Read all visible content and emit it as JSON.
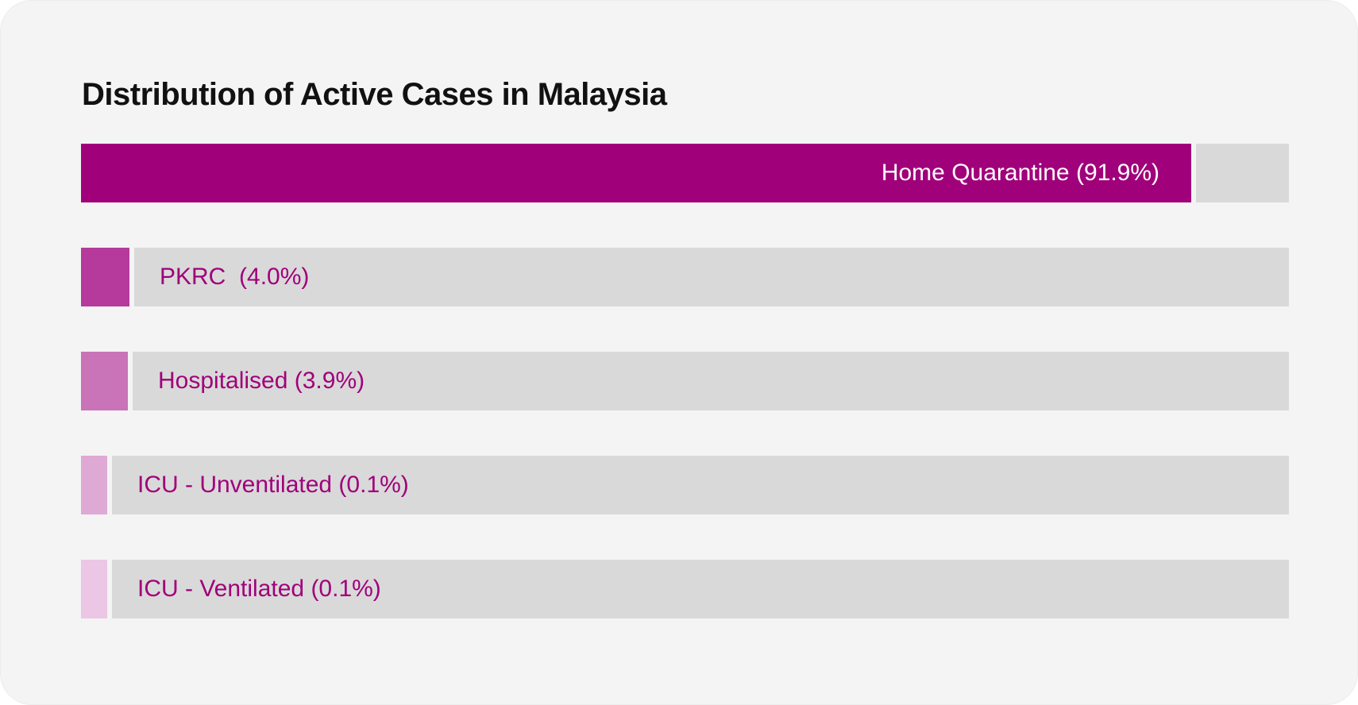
{
  "chart_data": {
    "type": "bar",
    "orientation": "horizontal",
    "title": "Distribution of Active Cases in Malaysia",
    "categories": [
      "Home Quarantine",
      "PKRC",
      "Hospitalised",
      "ICU - Unventilated",
      "ICU - Ventilated"
    ],
    "values": [
      91.9,
      4.0,
      3.9,
      0.1,
      0.1
    ],
    "labels": [
      "Home Quarantine (91.9%)",
      "PKRC  (4.0%)",
      "Hospitalised (3.9%)",
      "ICU - Unventilated (0.1%)",
      "ICU - Ventilated (0.1%)"
    ],
    "colors": [
      "#a0007a",
      "#b53a9b",
      "#c973b8",
      "#dfa9d5",
      "#ebc6e5"
    ],
    "label_colors": [
      "#ffffff",
      "#a0007a",
      "#a0007a",
      "#a0007a",
      "#a0007a"
    ],
    "track_color": "#d9d9d9",
    "xlim": [
      0,
      100
    ],
    "grid": false,
    "legend": "none"
  }
}
